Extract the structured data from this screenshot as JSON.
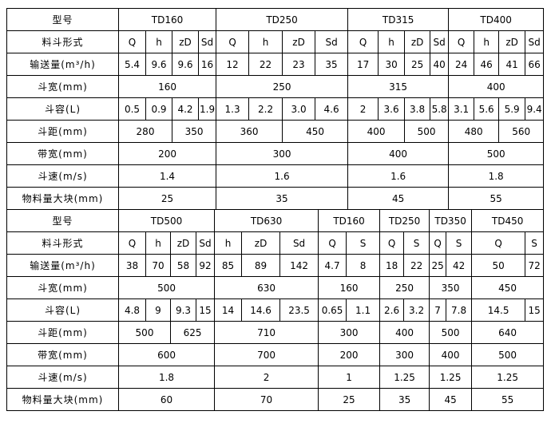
{
  "page": {
    "background_color": "#ffffff",
    "border_color": "#000000",
    "text_color": "#000000"
  },
  "tables": [
    {
      "name": "upper-spec-table",
      "rows": [
        {
          "label": "型号",
          "cells": [
            {
              "t": "TD160",
              "s": 4
            },
            {
              "t": "TD250",
              "s": 4
            },
            {
              "t": "TD315",
              "s": 4
            },
            {
              "t": "TD400",
              "s": 4
            }
          ]
        },
        {
          "label": "料斗形式",
          "cells": [
            "Q",
            "h",
            "zD",
            "Sd",
            "Q",
            "h",
            "zD",
            "Sd",
            "Q",
            "h",
            "zD",
            "Sd",
            "Q",
            "h",
            "zD",
            "Sd"
          ]
        },
        {
          "label": "输送量(m³/h)",
          "cells": [
            "5.4",
            "9.6",
            "9.6",
            "16",
            "12",
            "22",
            "23",
            "35",
            "17",
            "30",
            "25",
            "40",
            "24",
            "46",
            "41",
            "66"
          ]
        },
        {
          "label": "斗宽(mm)",
          "cells": [
            {
              "t": "160",
              "s": 4
            },
            {
              "t": "250",
              "s": 4
            },
            {
              "t": "315",
              "s": 4
            },
            {
              "t": "400",
              "s": 4
            }
          ]
        },
        {
          "label": "斗容(L)",
          "cells": [
            "0.5",
            "0.9",
            "4.2",
            "1.9",
            "1.3",
            "2.2",
            "3.0",
            "4.6",
            "2",
            "3.6",
            "3.8",
            "5.8",
            "3.1",
            "5.6",
            "5.9",
            "9.4"
          ]
        },
        {
          "label": "斗距(mm)",
          "cells": [
            {
              "t": "280",
              "s": 2
            },
            {
              "t": "350",
              "s": 2
            },
            {
              "t": "360",
              "s": 2
            },
            {
              "t": "450",
              "s": 2
            },
            {
              "t": "400",
              "s": 2
            },
            {
              "t": "500",
              "s": 2
            },
            {
              "t": "480",
              "s": 2
            },
            {
              "t": "560",
              "s": 2
            }
          ]
        },
        {
          "label": "带宽(mm)",
          "cells": [
            {
              "t": "200",
              "s": 4
            },
            {
              "t": "300",
              "s": 4
            },
            {
              "t": "400",
              "s": 4
            },
            {
              "t": "500",
              "s": 4
            }
          ]
        },
        {
          "label": "斗速(m/s)",
          "cells": [
            {
              "t": "1.4",
              "s": 4
            },
            {
              "t": "1.6",
              "s": 4
            },
            {
              "t": "1.6",
              "s": 4
            },
            {
              "t": "1.8",
              "s": 4
            }
          ]
        },
        {
          "label": "物料量大块(mm)",
          "cells": [
            {
              "t": "25",
              "s": 4
            },
            {
              "t": "35",
              "s": 4
            },
            {
              "t": "45",
              "s": 4
            },
            {
              "t": "55",
              "s": 4
            }
          ]
        }
      ]
    },
    {
      "name": "lower-spec-table",
      "rows": [
        {
          "label": "型号",
          "cells": [
            {
              "t": "TD500",
              "s": 4
            },
            {
              "t": "TD630",
              "s": 3
            },
            {
              "t": "TD160",
              "s": 2
            },
            {
              "t": "TD250",
              "s": 2
            },
            {
              "t": "TD350",
              "s": 2
            },
            {
              "t": "TD450",
              "s": 2
            }
          ]
        },
        {
          "label": "料斗形式",
          "cells": [
            "Q",
            "h",
            "zD",
            "Sd",
            "h",
            "zD",
            "Sd",
            "Q",
            "S",
            "Q",
            "S",
            "Q",
            "S",
            "Q",
            "S"
          ]
        },
        {
          "label": "输送量(m³/h)",
          "cells": [
            "38",
            "70",
            "58",
            "92",
            "85",
            "89",
            "142",
            "4.7",
            "8",
            "18",
            "22",
            "25",
            "42",
            "50",
            "72"
          ]
        },
        {
          "label": "斗宽(mm)",
          "cells": [
            {
              "t": "500",
              "s": 4
            },
            {
              "t": "630",
              "s": 3
            },
            {
              "t": "160",
              "s": 2
            },
            {
              "t": "250",
              "s": 2
            },
            {
              "t": "350",
              "s": 2
            },
            {
              "t": "450",
              "s": 2
            }
          ]
        },
        {
          "label": "斗容(L)",
          "cells": [
            "4.8",
            "9",
            "9.3",
            "15",
            "14",
            "14.6",
            "23.5",
            "0.65",
            "1.1",
            "2.6",
            "3.2",
            "7",
            "7.8",
            "14.5",
            "15"
          ]
        },
        {
          "label": "斗距(mm)",
          "cells": [
            {
              "t": "500",
              "s": 2
            },
            {
              "t": "625",
              "s": 2
            },
            {
              "t": "710",
              "s": 3
            },
            {
              "t": "300",
              "s": 2
            },
            {
              "t": "400",
              "s": 2
            },
            {
              "t": "500",
              "s": 2
            },
            {
              "t": "640",
              "s": 2
            }
          ]
        },
        {
          "label": "带宽(mm)",
          "cells": [
            {
              "t": "600",
              "s": 4
            },
            {
              "t": "700",
              "s": 3
            },
            {
              "t": "200",
              "s": 2
            },
            {
              "t": "300",
              "s": 2
            },
            {
              "t": "400",
              "s": 2
            },
            {
              "t": "500",
              "s": 2
            }
          ]
        },
        {
          "label": "斗速(m/s)",
          "cells": [
            {
              "t": "1.8",
              "s": 4
            },
            {
              "t": "2",
              "s": 3
            },
            {
              "t": "1",
              "s": 2
            },
            {
              "t": "1.25",
              "s": 2
            },
            {
              "t": "1.25",
              "s": 2
            },
            {
              "t": "1.25",
              "s": 2
            }
          ]
        },
        {
          "label": "物料量大块(mm)",
          "cells": [
            {
              "t": "60",
              "s": 4
            },
            {
              "t": "70",
              "s": 3
            },
            {
              "t": "25",
              "s": 2
            },
            {
              "t": "35",
              "s": 2
            },
            {
              "t": "45",
              "s": 2
            },
            {
              "t": "55",
              "s": 2
            }
          ]
        }
      ]
    }
  ]
}
